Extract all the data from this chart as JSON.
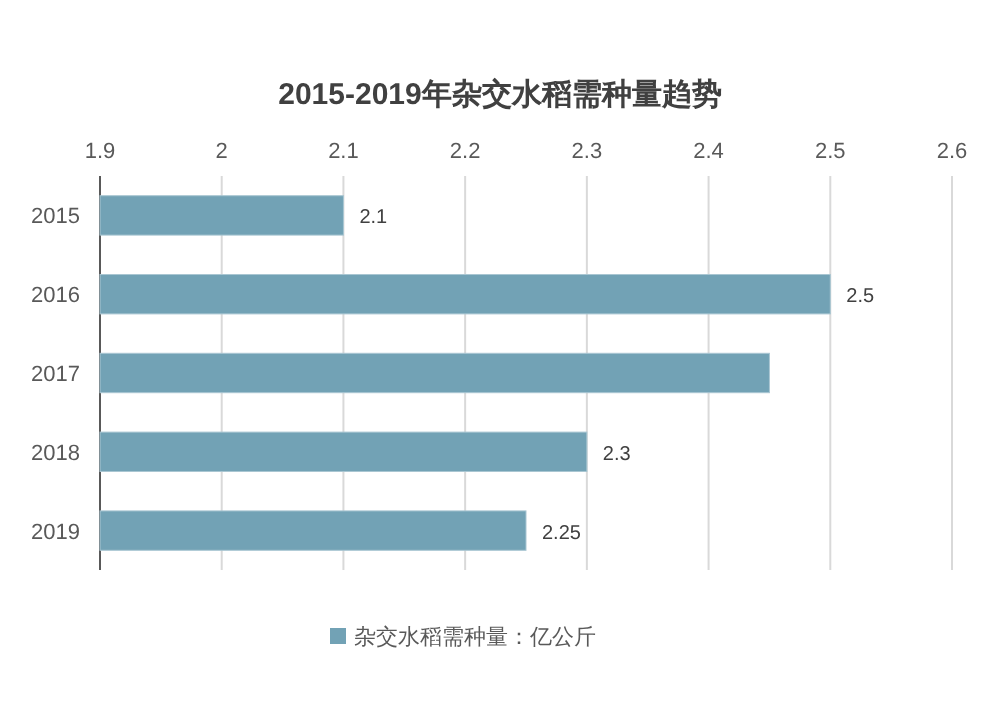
{
  "chart_data": {
    "type": "bar",
    "orientation": "horizontal",
    "title": "2015-2019年杂交水稻需种量趋势",
    "categories": [
      "2015",
      "2016",
      "2017",
      "2018",
      "2019"
    ],
    "series": [
      {
        "name": "杂交水稻需种量：亿公斤",
        "color": "#72a2b5",
        "values": [
          2.1,
          2.5,
          2.45,
          2.3,
          2.25
        ],
        "value_labels": [
          "2.1",
          "2.5",
          null,
          "2.3",
          "2.25"
        ]
      }
    ],
    "xlim": [
      1.9,
      2.6
    ],
    "xticks": [
      1.9,
      2,
      2.1,
      2.2,
      2.3,
      2.4,
      2.5,
      2.6
    ],
    "grid": "x",
    "legend": "bottom"
  }
}
